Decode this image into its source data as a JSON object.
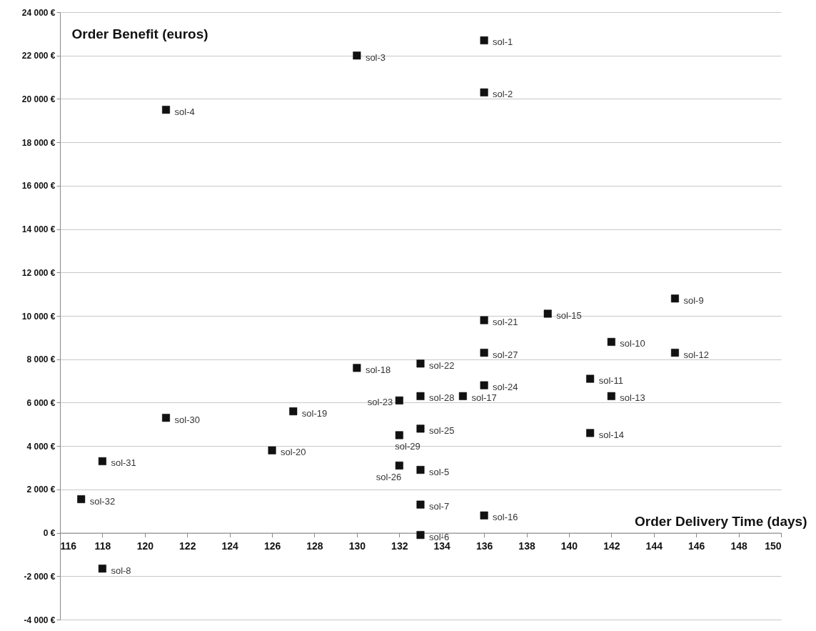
{
  "chart_data": {
    "type": "scatter",
    "xlabel": "Order Delivery Time (days)",
    "ylabel": "Order Benefit (euros)",
    "x": [
      136,
      136,
      130,
      121,
      133,
      133,
      133,
      118,
      145,
      142,
      141,
      145,
      142,
      141,
      139,
      136,
      135,
      130,
      127,
      126,
      136,
      133,
      132,
      136,
      133,
      132,
      136,
      133,
      132,
      121,
      118,
      117
    ],
    "series": [
      {
        "color": "#111111",
        "values": [
          22700,
          20300,
          22000,
          19500,
          2900,
          -100,
          1300,
          -1650,
          10800,
          8800,
          7100,
          8300,
          6300,
          4600,
          10100,
          800,
          6300,
          7600,
          5600,
          3800,
          9800,
          7800,
          6100,
          6800,
          4800,
          3100,
          8300,
          6300,
          4500,
          5300,
          3300,
          1550
        ]
      }
    ],
    "xlim": [
      116,
      150
    ],
    "xticks": [
      116,
      118,
      120,
      122,
      124,
      126,
      128,
      130,
      132,
      134,
      136,
      138,
      140,
      142,
      144,
      146,
      148,
      150
    ],
    "ylim": [
      -4000,
      24000
    ],
    "yticks": [
      {
        "value": -4000,
        "label": "-4 000 €"
      },
      {
        "value": -2000,
        "label": "-2 000 €"
      },
      {
        "value": 0,
        "label": "0 €"
      },
      {
        "value": 2000,
        "label": "2 000 €"
      },
      {
        "value": 4000,
        "label": "4 000 €"
      },
      {
        "value": 6000,
        "label": "6 000 €"
      },
      {
        "value": 8000,
        "label": "8 000 €"
      },
      {
        "value": 10000,
        "label": "10 000 €"
      },
      {
        "value": 12000,
        "label": "12 000 €"
      },
      {
        "value": 14000,
        "label": "14 000 €"
      },
      {
        "value": 16000,
        "label": "16 000 €"
      },
      {
        "value": 18000,
        "label": "18 000 €"
      },
      {
        "value": 20000,
        "label": "20 000 €"
      },
      {
        "value": 22000,
        "label": "22 000 €"
      },
      {
        "value": 24000,
        "label": "24 000 €"
      }
    ],
    "grid": "y",
    "marker": "square",
    "annotations": [
      {
        "text": "sol-1",
        "x": 136,
        "y": 22700
      },
      {
        "text": "sol-2",
        "x": 136,
        "y": 20300
      },
      {
        "text": "sol-3",
        "x": 130,
        "y": 22000
      },
      {
        "text": "sol-4",
        "x": 121,
        "y": 19500
      },
      {
        "text": "sol-5",
        "x": 133,
        "y": 2900
      },
      {
        "text": "sol-6",
        "x": 133,
        "y": -100
      },
      {
        "text": "sol-7",
        "x": 133,
        "y": 1300
      },
      {
        "text": "sol-8",
        "x": 118,
        "y": -1650
      },
      {
        "text": "sol-9",
        "x": 145,
        "y": 10800
      },
      {
        "text": "sol-10",
        "x": 142,
        "y": 8800
      },
      {
        "text": "sol-11",
        "x": 141,
        "y": 7100
      },
      {
        "text": "sol-12",
        "x": 145,
        "y": 8300
      },
      {
        "text": "sol-13",
        "x": 142,
        "y": 6300
      },
      {
        "text": "sol-14",
        "x": 141,
        "y": 4600
      },
      {
        "text": "sol-15",
        "x": 139,
        "y": 10100
      },
      {
        "text": "sol-16",
        "x": 136,
        "y": 800
      },
      {
        "text": "sol-17",
        "x": 135,
        "y": 6300
      },
      {
        "text": "sol-18",
        "x": 130,
        "y": 7600
      },
      {
        "text": "sol-19",
        "x": 127,
        "y": 5600
      },
      {
        "text": "sol-20",
        "x": 126,
        "y": 3800
      },
      {
        "text": "sol-21",
        "x": 136,
        "y": 9800
      },
      {
        "text": "sol-22",
        "x": 133,
        "y": 7800
      },
      {
        "text": "sol-23",
        "x": 132,
        "y": 6100
      },
      {
        "text": "sol-24",
        "x": 136,
        "y": 6800
      },
      {
        "text": "sol-25",
        "x": 133,
        "y": 4800
      },
      {
        "text": "sol-26",
        "x": 132,
        "y": 3100
      },
      {
        "text": "sol-27",
        "x": 136,
        "y": 8300
      },
      {
        "text": "sol-28",
        "x": 133,
        "y": 6300
      },
      {
        "text": "sol-29",
        "x": 132,
        "y": 4500
      },
      {
        "text": "sol-30",
        "x": 121,
        "y": 5300
      },
      {
        "text": "sol-31",
        "x": 118,
        "y": 3300
      },
      {
        "text": "sol-32",
        "x": 117,
        "y": 1550
      }
    ]
  }
}
